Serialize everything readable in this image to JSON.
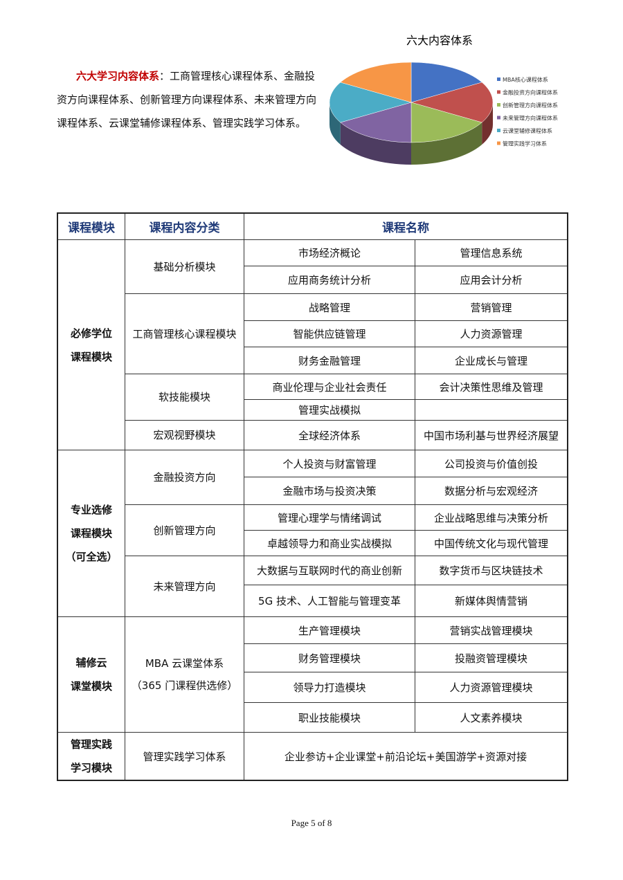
{
  "intro": {
    "highlight": "六大学习内容体系",
    "text": "：工商管理核心课程体系、金融投资方向课程体系、创新管理方向课程体系、未来管理方向课程体系、云课堂辅修课程体系、管理实践学习体系。"
  },
  "chart_data": {
    "type": "pie",
    "title": "六大内容体系",
    "categories": [
      "MBA核心课程体系",
      "金融投资方向课程体系",
      "创新管理方向课程体系",
      "未来管理方向课程体系",
      "云课堂辅修课程体系",
      "管理实践学习体系"
    ],
    "values": [
      1,
      1,
      1,
      1,
      1,
      1
    ],
    "colors": [
      "#4472c4",
      "#c0504d",
      "#9bbb59",
      "#8064a2",
      "#4bacc6",
      "#f79646"
    ],
    "legend": "right",
    "style": "3d"
  },
  "table": {
    "headers": [
      "课程模块",
      "课程内容分类",
      "课程名称"
    ],
    "rows": [
      [
        "市场经济概论",
        "管理信息系统"
      ],
      [
        "应用商务统计分析",
        "应用会计分析"
      ],
      [
        "战略管理",
        "营销管理"
      ],
      [
        "智能供应链管理",
        "人力资源管理"
      ],
      [
        "财务金融管理",
        "企业成长与管理"
      ],
      [
        "商业伦理与企业社会责任",
        "会计决策性思维及管理"
      ],
      [
        "管理实战模拟",
        ""
      ],
      [
        "全球经济体系",
        "中国市场利基与世界经济展望"
      ],
      [
        "个人投资与财富管理",
        "公司投资与价值创投"
      ],
      [
        "金融市场与投资决策",
        "数据分析与宏观经济"
      ],
      [
        "管理心理学与情绪调试",
        "企业战略思维与决策分析"
      ],
      [
        "卓越领导力和商业实战模拟",
        "中国传统文化与现代管理"
      ],
      [
        "大数据与互联网时代的商业创新",
        "数字货币与区块链技术"
      ],
      [
        "5G 技术、人工智能与管理变革",
        "新媒体舆情营销"
      ],
      [
        "生产管理模块",
        "营销实战管理模块"
      ],
      [
        "财务管理模块",
        "投融资管理模块"
      ],
      [
        "领导力打造模块",
        "人力资源管理模块"
      ],
      [
        "职业技能模块",
        "人文素养模块"
      ]
    ],
    "modules": [
      "必修学位\n课程模块",
      "专业选修\n课程模块\n（可全选）",
      "辅修云\n课堂模块",
      "管理实践\n学习模块"
    ],
    "categories": [
      "基础分析模块",
      "工商管理核心课程模块",
      "软技能模块",
      "宏观视野模块",
      "金融投资方向",
      "创新管理方向",
      "未来管理方向",
      "MBA 云课堂体系\n（365 门课程供选修）",
      "管理实践学习体系"
    ],
    "practice": "企业参访+企业课堂+前沿论坛+美国游学+资源对接"
  },
  "footer": "Page 5 of 8"
}
